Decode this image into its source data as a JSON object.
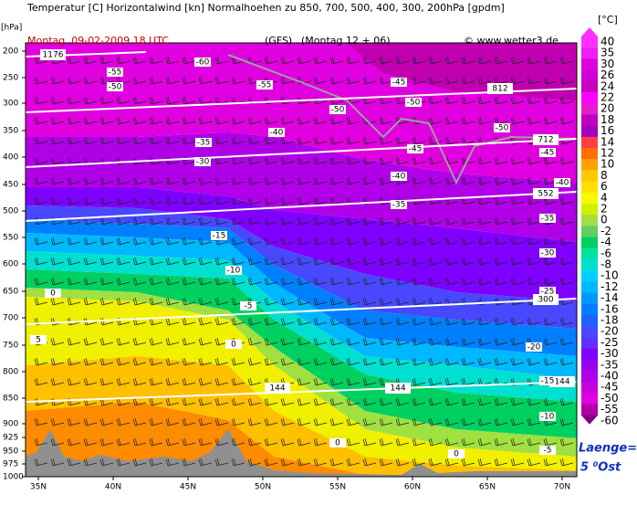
{
  "header": {
    "title": "Temperatur [C] Horizontalwind [kn] Normalhoehen zu 850, 700, 500, 400, 300, 200hPa [gpdm]",
    "date": "Montag, 09-02-2009   18 UTC",
    "model": "(GFS)",
    "run": "(Montag 12 + 06)",
    "source": "© www.wetter3.de",
    "y_unit": "[hPa]",
    "color_unit": "[°C]"
  },
  "y_axis": {
    "labels": [
      "200",
      "250",
      "300",
      "350",
      "400",
      "450",
      "500",
      "550",
      "600",
      "650",
      "700",
      "750",
      "800",
      "850",
      "900",
      "925",
      "950",
      "975",
      "1000"
    ]
  },
  "x_axis": {
    "labels": [
      "35N",
      "40N",
      "45N",
      "50N",
      "55N",
      "60N",
      "65N",
      "70N"
    ]
  },
  "colorbar": {
    "labels": [
      "40",
      "35",
      "30",
      "26",
      "24",
      "22",
      "20",
      "18",
      "16",
      "14",
      "12",
      "10",
      "8",
      "6",
      "4",
      "2",
      "0",
      "-2",
      "-4",
      "-6",
      "-8",
      "-10",
      "-12",
      "-14",
      "-16",
      "-18",
      "-20",
      "-25",
      "-30",
      "-35",
      "-40",
      "-45",
      "-50",
      "-55",
      "-60"
    ]
  },
  "height_labels": [
    "1176",
    "812",
    "712",
    "552",
    "300",
    "144",
    "144",
    "144"
  ],
  "temperature_labels": [
    "-55",
    "-50",
    "-60",
    "-55",
    "-45",
    "-50",
    "-50",
    "-40",
    "-35",
    "-30",
    "-45",
    "-50",
    "-45",
    "-40",
    "-40",
    "-35",
    "-35",
    "-15",
    "-10",
    "-30",
    "-5",
    "-25",
    "0",
    "5",
    "0",
    "-20",
    "-15",
    "-10",
    "-5",
    "0",
    "0"
  ],
  "side_note": {
    "line1": "Laenge=",
    "line2": "5 ⁰Ost"
  }
}
